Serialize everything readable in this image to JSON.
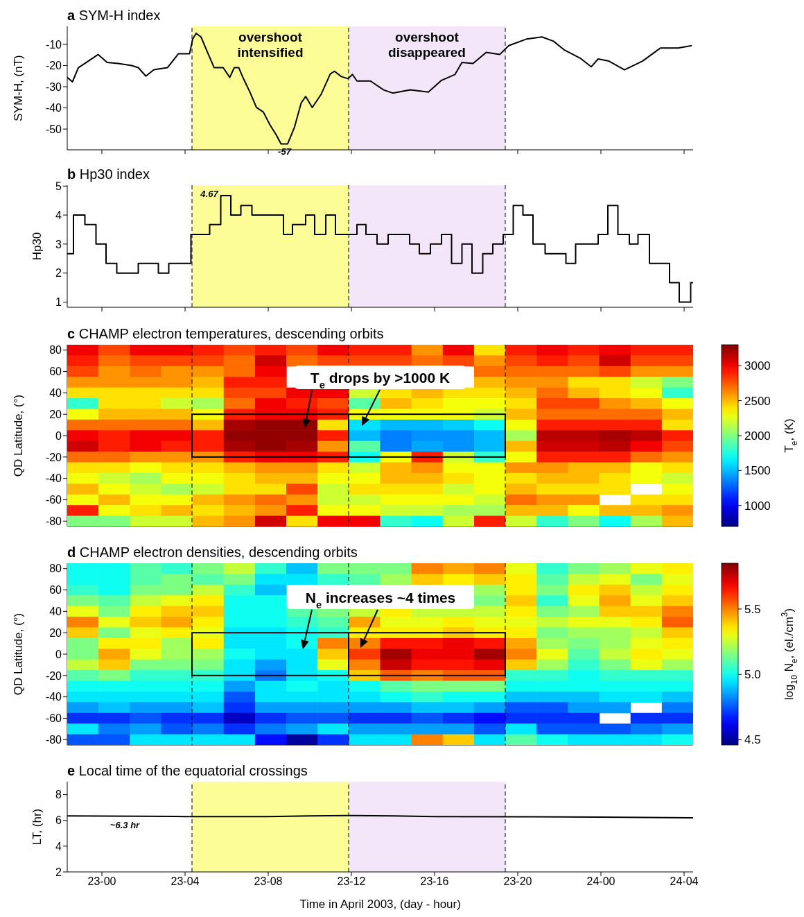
{
  "chart_data": [
    {
      "type": "line",
      "title": "a SYM-H index",
      "ylabel": "SYM-H, (nT)",
      "x": [
        "2003-04-22T22:20",
        "2003-04-22T22:35",
        "2003-04-22T22:52",
        "2003-04-22T23:11",
        "2003-04-22T23:49",
        "2003-04-23T00:15",
        "2003-04-23T00:47",
        "2003-04-23T01:26",
        "2003-04-23T01:45",
        "2003-04-23T02:07",
        "2003-04-23T02:30",
        "2003-04-23T03:09",
        "2003-04-23T03:41",
        "2003-04-23T04:13",
        "2003-04-23T04:22",
        "2003-04-23T04:32",
        "2003-04-23T04:46",
        "2003-04-23T05:05",
        "2003-04-23T05:24",
        "2003-04-23T05:50",
        "2003-04-23T06:09",
        "2003-04-23T06:22",
        "2003-04-23T06:35",
        "2003-04-23T06:48",
        "2003-04-23T07:07",
        "2003-04-23T07:26",
        "2003-04-23T07:46",
        "2003-04-23T08:05",
        "2003-04-23T08:24",
        "2003-04-23T08:37",
        "2003-04-23T08:56",
        "2003-04-23T09:16",
        "2003-04-23T09:35",
        "2003-04-23T09:48",
        "2003-04-23T10:07",
        "2003-04-23T10:33",
        "2003-04-23T10:59",
        "2003-04-23T11:11",
        "2003-04-23T11:31",
        "2003-04-23T11:50",
        "2003-04-23T12:03",
        "2003-04-23T12:16",
        "2003-04-23T12:55",
        "2003-04-23T13:33",
        "2003-04-23T13:59",
        "2003-04-23T14:50",
        "2003-04-23T15:42",
        "2003-04-23T16:20",
        "2003-04-23T16:59",
        "2003-04-23T17:19",
        "2003-04-23T17:51",
        "2003-04-23T18:29",
        "2003-04-23T19:08",
        "2003-04-23T19:34",
        "2003-04-23T20:25",
        "2003-04-23T21:10",
        "2003-04-23T21:43",
        "2003-04-23T22:15",
        "2003-04-23T23:00",
        "2003-04-23T23:32",
        "2003-04-23T23:52",
        "2003-04-24T00:23",
        "2003-04-24T01:08",
        "2003-04-24T02:00",
        "2003-04-24T02:52",
        "2003-04-24T03:43",
        "2003-04-24T04:22"
      ],
      "series": [
        {
          "color": "#000000",
          "values": [
            -25.6,
            -27.7,
            -21,
            -19,
            -14.8,
            -18.5,
            -19,
            -20,
            -21,
            -25,
            -22,
            -21,
            -14.4,
            -14.4,
            -7.5,
            -4.8,
            -6.5,
            -13.8,
            -21,
            -21,
            -25.6,
            -21,
            -21,
            -26,
            -32.5,
            -39.8,
            -42,
            -48,
            -53,
            -57,
            -57,
            -49,
            -37.7,
            -34.6,
            -39.8,
            -33.5,
            -24,
            -22.7,
            -25.2,
            -26.2,
            -24.2,
            -27.3,
            -27.3,
            -31.5,
            -33,
            -31.5,
            -32.5,
            -27,
            -24.2,
            -18.5,
            -19,
            -13.8,
            -14.8,
            -10.6,
            -7.5,
            -6.5,
            -8.5,
            -12.7,
            -16.5,
            -20.6,
            -16.9,
            -17.9,
            -22,
            -17.9,
            -11.7,
            -11.7,
            -10.6
          ]
        }
      ],
      "xlim": [
        "2003-04-22T22:20",
        "2003-04-24T04:26"
      ],
      "xticks": [
        {
          "value": "2003-04-23T00:00",
          "label": null
        },
        {
          "value": "2003-04-23T04:00",
          "label": null
        },
        {
          "value": "2003-04-23T08:00",
          "label": null
        },
        {
          "value": "2003-04-23T12:00",
          "label": null
        },
        {
          "value": "2003-04-23T16:00",
          "label": null
        },
        {
          "value": "2003-04-23T20:00",
          "label": null
        },
        {
          "value": "2003-04-24T00:00",
          "label": null
        },
        {
          "value": "2003-04-24T04:00",
          "label": null
        }
      ],
      "ylim": [
        -59.8,
        -1.5
      ],
      "yticks": [
        -50,
        -40,
        -30,
        -20,
        -10
      ],
      "tick_labels": "y",
      "line_style": "solid",
      "bands": [
        {
          "axis": "x",
          "from": "2003-04-23T04:20",
          "to": "2003-04-23T11:52",
          "label": "overshoot intensified",
          "color": "#fdfd98"
        },
        {
          "axis": "x",
          "from": "2003-04-23T11:52",
          "to": "2003-04-23T19:24",
          "label": "overshoot disappeared",
          "color": "#f4e6f9"
        }
      ],
      "ref_lines": [
        {
          "axis": "x",
          "value": "2003-04-23T04:20",
          "line_style": "dashed"
        },
        {
          "axis": "x",
          "value": "2003-04-23T11:52",
          "line_style": "dashed"
        },
        {
          "axis": "x",
          "value": "2003-04-23T19:24",
          "line_style": "dashed"
        }
      ],
      "annotations": [
        {
          "text": "-57",
          "x": "2003-04-23T08:47",
          "y": -57
        }
      ]
    },
    {
      "type": "step",
      "title": "b Hp30 index",
      "ylabel": "Hp30",
      "x": [
        "2003-04-22T22:20",
        "2003-04-22T22:38",
        "2003-04-22T23:11",
        "2003-04-22T23:43",
        "2003-04-23T00:12",
        "2003-04-23T00:43",
        "2003-04-23T01:45",
        "2003-04-23T02:43",
        "2003-04-23T03:13",
        "2003-04-23T04:17",
        "2003-04-23T05:11",
        "2003-04-23T05:43",
        "2003-04-23T06:12",
        "2003-04-23T06:41",
        "2003-04-23T07:13",
        "2003-04-23T08:44",
        "2003-04-23T09:10",
        "2003-04-23T09:48",
        "2003-04-23T10:14",
        "2003-04-23T10:46",
        "2003-04-23T11:14",
        "2003-04-23T12:16",
        "2003-04-23T12:42",
        "2003-04-23T13:14",
        "2003-04-23T13:46",
        "2003-04-23T14:48",
        "2003-04-23T15:16",
        "2003-04-23T15:48",
        "2003-04-23T16:20",
        "2003-04-23T16:49",
        "2003-04-23T17:19",
        "2003-04-23T17:48",
        "2003-04-23T18:19",
        "2003-04-23T18:48",
        "2003-04-23T19:18",
        "2003-04-23T19:47",
        "2003-04-23T20:15",
        "2003-04-23T20:44",
        "2003-04-23T21:19",
        "2003-04-23T22:19",
        "2003-04-23T22:47",
        "2003-04-23T23:52",
        "2003-04-24T00:20",
        "2003-04-24T00:49",
        "2003-04-24T01:22",
        "2003-04-24T01:47",
        "2003-04-24T02:20",
        "2003-04-24T03:18",
        "2003-04-24T03:46",
        "2003-04-24T04:19",
        "2003-04-24T04:26"
      ],
      "series": [
        {
          "color": "#000000",
          "values": [
            2.67,
            4,
            3.67,
            3,
            2.33,
            2,
            2.33,
            2,
            2.33,
            3.33,
            3.67,
            4.67,
            4,
            4.33,
            4,
            3.33,
            3.67,
            4,
            3.33,
            4,
            3.33,
            3.67,
            3.33,
            3,
            3.33,
            3,
            2.67,
            3,
            3.33,
            2.33,
            3,
            2,
            2.67,
            3,
            3.33,
            4.33,
            4,
            3,
            2.67,
            2.33,
            3,
            3.33,
            4.33,
            3.33,
            3,
            3.33,
            2.33,
            1.67,
            1,
            1.67,
            1.67
          ]
        }
      ],
      "xlim": [
        "2003-04-22T22:20",
        "2003-04-24T04:26"
      ],
      "xticks": [
        {
          "value": "2003-04-23T00:00",
          "label": null
        },
        {
          "value": "2003-04-23T04:00",
          "label": null
        },
        {
          "value": "2003-04-23T08:00",
          "label": null
        },
        {
          "value": "2003-04-23T12:00",
          "label": null
        },
        {
          "value": "2003-04-23T16:00",
          "label": null
        },
        {
          "value": "2003-04-23T20:00",
          "label": null
        },
        {
          "value": "2003-04-24T00:00",
          "label": null
        },
        {
          "value": "2003-04-24T04:00",
          "label": null
        }
      ],
      "ylim": [
        0.82,
        5.03
      ],
      "yticks": [
        1,
        2,
        3,
        4,
        5
      ],
      "tick_labels": "y",
      "line_style": "solid",
      "bands": [
        {
          "axis": "x",
          "from": "2003-04-23T04:20",
          "to": "2003-04-23T11:52",
          "color": "#fdfd98"
        },
        {
          "axis": "x",
          "from": "2003-04-23T11:52",
          "to": "2003-04-23T19:24",
          "color": "#f4e6f9"
        }
      ],
      "ref_lines": [
        {
          "axis": "x",
          "value": "2003-04-23T04:20",
          "line_style": "dashed"
        },
        {
          "axis": "x",
          "value": "2003-04-23T11:52",
          "line_style": "dashed"
        },
        {
          "axis": "x",
          "value": "2003-04-23T19:24",
          "line_style": "dashed"
        }
      ],
      "annotations": [
        {
          "text": "4.67",
          "x": "2003-04-23T05:58",
          "y": 4.67
        }
      ]
    },
    {
      "type": "heatmap",
      "title": "c CHAMP electron temperatures, descending orbits",
      "ylabel": "QD Latitude, (°)",
      "clabel": "T$_{e}$, (K)",
      "categories": [
        null,
        null,
        null,
        null,
        null,
        null,
        null,
        null,
        null,
        null,
        null,
        null,
        null,
        null,
        null,
        null,
        null,
        null,
        null,
        null
      ],
      "y_categories": [
        "80",
        null,
        "60",
        null,
        "40",
        null,
        "20",
        null,
        "0",
        null,
        "-20",
        null,
        "-40",
        null,
        "-60",
        null,
        "-80"
      ],
      "cells": [
        [
          3000,
          2800,
          3000,
          3000,
          2900,
          2800,
          2900,
          2800,
          3000,
          2900,
          2900,
          2600,
          3000,
          2400,
          2900,
          3000,
          2900,
          3000,
          2900,
          2900
        ],
        [
          2900,
          2700,
          2800,
          2800,
          2800,
          2700,
          3100,
          2700,
          2800,
          2800,
          2800,
          2700,
          2800,
          2600,
          2800,
          2900,
          2800,
          3100,
          2800,
          2800
        ],
        [
          2800,
          2600,
          2700,
          2600,
          2600,
          2700,
          3000,
          null,
          null,
          null,
          null,
          null,
          null,
          2700,
          2700,
          2700,
          2700,
          2800,
          2600,
          2600
        ],
        [
          2600,
          2600,
          2600,
          2600,
          2500,
          2900,
          2900,
          null,
          null,
          null,
          null,
          null,
          null,
          2500,
          2600,
          2600,
          2400,
          2400,
          2200,
          2000
        ],
        [
          2400,
          2400,
          2400,
          2400,
          2400,
          2800,
          2800,
          3000,
          3000,
          2200,
          2400,
          2500,
          2400,
          2400,
          2500,
          2700,
          2500,
          2400,
          2300,
          1800
        ],
        [
          1800,
          2400,
          2400,
          2200,
          2100,
          2700,
          3000,
          2900,
          2800,
          1900,
          2500,
          2400,
          2300,
          2300,
          2400,
          2800,
          2800,
          2600,
          2500,
          2300
        ],
        [
          2300,
          2500,
          2500,
          2500,
          2300,
          2900,
          3000,
          3000,
          2900,
          2300,
          2300,
          2300,
          2300,
          2200,
          2500,
          2700,
          2700,
          2700,
          2700,
          2500
        ],
        [
          2700,
          2700,
          2700,
          2700,
          2500,
          3200,
          3250,
          3250,
          2400,
          1600,
          1500,
          1500,
          1550,
          1700,
          2300,
          2900,
          2900,
          2900,
          2900,
          2400
        ],
        [
          3000,
          2900,
          3000,
          3000,
          2900,
          3250,
          3250,
          3250,
          2900,
          1500,
          1350,
          1400,
          1400,
          1500,
          2100,
          3150,
          3150,
          3200,
          3150,
          2900
        ],
        [
          3100,
          2900,
          3000,
          2900,
          2900,
          3200,
          3250,
          3200,
          2600,
          1900,
          1350,
          1450,
          1400,
          1500,
          2500,
          3100,
          3100,
          3150,
          3000,
          2800
        ],
        [
          2700,
          2700,
          2600,
          2600,
          2600,
          2900,
          3000,
          3000,
          2900,
          1700,
          2300,
          2900,
          2200,
          1800,
          2300,
          2900,
          2900,
          2900,
          2700,
          2600
        ],
        [
          2400,
          2400,
          2300,
          2400,
          2400,
          2500,
          2600,
          2600,
          2400,
          2200,
          2500,
          2600,
          2300,
          2300,
          2600,
          2600,
          2500,
          2500,
          2300,
          2400
        ],
        [
          2300,
          2200,
          2100,
          2300,
          2300,
          2400,
          2500,
          2500,
          2300,
          2300,
          2500,
          2500,
          2400,
          2300,
          2400,
          2500,
          2500,
          2400,
          2300,
          2200
        ],
        [
          2500,
          2300,
          2200,
          2100,
          2200,
          2400,
          2400,
          2800,
          2200,
          2400,
          2400,
          2400,
          2200,
          2300,
          2500,
          2400,
          2400,
          2400,
          null,
          2300
        ],
        [
          2300,
          2500,
          2300,
          2300,
          2500,
          2600,
          2700,
          2600,
          2200,
          2200,
          2300,
          2300,
          2300,
          2200,
          2700,
          2600,
          2600,
          null,
          2400,
          2400
        ],
        [
          2900,
          2300,
          2400,
          2500,
          2400,
          2500,
          2600,
          2900,
          2300,
          2300,
          2200,
          2200,
          2100,
          2100,
          2500,
          2500,
          2300,
          2500,
          2500,
          2600
        ],
        [
          2000,
          2000,
          2200,
          2200,
          2500,
          2600,
          3100,
          2400,
          3000,
          3000,
          1800,
          1700,
          2200,
          2900,
          2200,
          1800,
          2000,
          1700,
          2100,
          2500
        ]
      ],
      "clim": [
        700,
        3300
      ],
      "cticks": [
        1000,
        1500,
        2000,
        2500,
        3000
      ],
      "ref_lines": [
        {
          "axis": "y",
          "value": "20",
          "line_style": "dashed"
        },
        {
          "axis": "y",
          "value": "-20",
          "line_style": "dashed"
        }
      ],
      "annotations": [
        "T$_{e}$ drops by >1000 K"
      ]
    },
    {
      "type": "heatmap",
      "title": "d CHAMP electron densities, descending orbits",
      "ylabel": "QD Latitude, (°)",
      "clabel": "log$_{10}$ N$_{e}$, (el./cm$^{3}$)",
      "categories": [
        null,
        null,
        null,
        null,
        null,
        null,
        null,
        null,
        null,
        null,
        null,
        null,
        null,
        null,
        null,
        null,
        null,
        null,
        null,
        null
      ],
      "y_categories": [
        "80",
        null,
        "60",
        null,
        "40",
        null,
        "20",
        null,
        "0",
        null,
        "-20",
        null,
        "-40",
        null,
        "-60",
        null,
        "-80"
      ],
      "cells": [
        [
          5.0,
          5.0,
          5.1,
          5.05,
          5.15,
          5.25,
          5.05,
          4.9,
          5.15,
          5.15,
          5.15,
          5.5,
          5.45,
          5.5,
          5.3,
          5.05,
          5.15,
          5.2,
          5.3,
          5.35
        ],
        [
          5.0,
          5.0,
          5.1,
          5.15,
          5.1,
          5.15,
          4.95,
          4.95,
          5.05,
          5.1,
          5.2,
          5.4,
          5.35,
          5.4,
          5.35,
          5.1,
          5.25,
          5.3,
          5.15,
          5.3
        ],
        [
          5.05,
          5.0,
          5.15,
          5.15,
          5.25,
          5.05,
          4.9,
          null,
          null,
          null,
          null,
          null,
          null,
          5.2,
          5.35,
          5.15,
          5.35,
          5.4,
          5.25,
          5.35
        ],
        [
          5.15,
          5.1,
          5.25,
          5.3,
          5.35,
          5.0,
          5.0,
          null,
          null,
          null,
          null,
          null,
          null,
          5.15,
          5.4,
          5.05,
          5.3,
          5.45,
          5.3,
          5.4
        ],
        [
          5.3,
          5.15,
          5.35,
          5.4,
          5.4,
          5.0,
          5.0,
          5.1,
          5.15,
          5.25,
          5.35,
          5.25,
          5.25,
          5.25,
          5.35,
          5.15,
          5.2,
          5.4,
          5.4,
          5.5
        ],
        [
          5.5,
          5.3,
          5.4,
          5.45,
          5.35,
          5.0,
          5.0,
          5.05,
          5.1,
          5.45,
          5.3,
          5.3,
          5.35,
          5.3,
          5.3,
          5.25,
          5.3,
          5.3,
          5.35,
          5.55
        ],
        [
          5.4,
          5.15,
          5.3,
          5.35,
          5.3,
          4.95,
          4.95,
          5.0,
          5.05,
          5.35,
          5.35,
          5.35,
          5.4,
          5.35,
          5.35,
          5.15,
          5.2,
          5.2,
          5.25,
          5.4
        ],
        [
          5.15,
          5.35,
          5.35,
          5.2,
          5.35,
          4.95,
          4.95,
          5.0,
          5.5,
          5.5,
          5.65,
          5.65,
          5.7,
          5.65,
          5.45,
          5.2,
          5.15,
          5.2,
          5.3,
          5.35
        ],
        [
          5.15,
          5.45,
          5.3,
          5.2,
          5.2,
          5.0,
          4.95,
          4.95,
          5.4,
          5.6,
          5.8,
          5.7,
          5.7,
          5.8,
          5.5,
          5.3,
          5.1,
          5.25,
          5.35,
          5.3
        ],
        [
          5.25,
          5.4,
          5.15,
          5.15,
          5.15,
          4.95,
          4.85,
          4.95,
          5.3,
          5.5,
          5.75,
          5.65,
          5.65,
          5.7,
          5.4,
          5.2,
          5.05,
          5.15,
          5.3,
          5.2
        ],
        [
          5.1,
          5.15,
          5.05,
          5.05,
          5.05,
          4.95,
          4.8,
          4.95,
          5.0,
          5.4,
          5.55,
          5.5,
          5.55,
          5.55,
          5.05,
          5.05,
          5.0,
          5.05,
          5.05,
          5.05
        ],
        [
          5.0,
          5.0,
          5.0,
          5.0,
          5.0,
          4.85,
          4.95,
          5.0,
          4.95,
          5.0,
          5.1,
          5.15,
          5.15,
          5.15,
          5.0,
          5.0,
          5.0,
          5.0,
          5.0,
          5.0
        ],
        [
          4.95,
          4.95,
          4.95,
          4.95,
          4.95,
          4.75,
          4.95,
          4.95,
          4.95,
          4.95,
          5.0,
          5.05,
          5.0,
          5.0,
          4.9,
          4.9,
          4.9,
          4.95,
          4.95,
          4.9
        ],
        [
          4.85,
          4.9,
          4.85,
          4.85,
          4.9,
          4.7,
          4.85,
          4.85,
          4.85,
          4.85,
          4.85,
          4.9,
          4.9,
          4.85,
          4.75,
          4.75,
          4.85,
          4.85,
          null,
          4.8
        ],
        [
          4.7,
          4.7,
          4.75,
          4.7,
          4.7,
          4.55,
          4.7,
          4.75,
          4.75,
          4.7,
          4.7,
          4.75,
          4.7,
          4.65,
          4.7,
          4.7,
          4.7,
          null,
          4.7,
          4.7
        ],
        [
          4.95,
          4.8,
          4.85,
          4.75,
          4.8,
          4.7,
          4.8,
          4.85,
          4.95,
          4.85,
          4.85,
          4.85,
          4.85,
          4.75,
          4.95,
          4.75,
          4.75,
          4.75,
          4.8,
          4.85
        ],
        [
          4.75,
          4.75,
          4.95,
          4.95,
          4.95,
          4.95,
          4.65,
          4.5,
          4.7,
          4.95,
          4.95,
          5.5,
          5.4,
          4.95,
          5.1,
          5.0,
          4.95,
          4.95,
          4.95,
          5.0
        ]
      ],
      "clim": [
        4.46,
        5.85
      ],
      "cticks": [
        4.5,
        {
          "value": 5,
          "label": "5.0"
        },
        5.5
      ],
      "ref_lines": [
        {
          "axis": "y",
          "value": "20",
          "line_style": "dashed"
        },
        {
          "axis": "y",
          "value": "-20",
          "line_style": "dashed"
        }
      ],
      "annotations": [
        "N$_{e}$ increases ~4 times"
      ]
    },
    {
      "type": "line",
      "title": "e Local time of the equatorial crossings",
      "ylabel": "LT, (hr)",
      "xlabel": "Time in April 2003, (day - hour)",
      "x": [
        "2003-04-22T22:20",
        "2003-04-23T04:00",
        "2003-04-23T08:00",
        "2003-04-23T10:00",
        "2003-04-23T11:48",
        "2003-04-23T14:00",
        "2003-04-23T16:00",
        "2003-04-23T20:00",
        "2003-04-24T00:00",
        "2003-04-24T04:26"
      ],
      "series": [
        {
          "color": "#000000",
          "values": [
            6.35,
            6.3,
            6.3,
            6.35,
            6.38,
            6.35,
            6.3,
            6.28,
            6.25,
            6.2
          ]
        }
      ],
      "xlim": [
        "2003-04-22T22:20",
        "2003-04-24T04:26"
      ],
      "xticks": [
        {
          "value": "2003-04-23T00:00",
          "label": "23-00"
        },
        {
          "value": "2003-04-23T04:00",
          "label": "23-04"
        },
        {
          "value": "2003-04-23T08:00",
          "label": "23-08"
        },
        {
          "value": "2003-04-23T12:00",
          "label": "23-12"
        },
        {
          "value": "2003-04-23T16:00",
          "label": "23-16"
        },
        {
          "value": "2003-04-23T20:00",
          "label": "23-20"
        },
        {
          "value": "2003-04-24T00:00",
          "label": "24-00"
        },
        {
          "value": "2003-04-24T04:00",
          "label": "24-04"
        }
      ],
      "ylim": [
        2,
        9
      ],
      "yticks": [
        2,
        4,
        6,
        8
      ],
      "line_style": "solid",
      "bands": [
        {
          "axis": "x",
          "from": "2003-04-23T04:20",
          "to": "2003-04-23T11:52",
          "color": "#fdfd98"
        },
        {
          "axis": "x",
          "from": "2003-04-23T11:52",
          "to": "2003-04-23T19:24",
          "color": "#f4e6f9"
        }
      ],
      "ref_lines": [
        {
          "axis": "x",
          "value": "2003-04-23T04:20",
          "line_style": "dashed"
        },
        {
          "axis": "x",
          "value": "2003-04-23T11:52",
          "line_style": "dashed"
        },
        {
          "axis": "x",
          "value": "2003-04-23T19:24",
          "line_style": "dashed"
        }
      ],
      "annotations": [
        "~6.3 hr"
      ]
    }
  ]
}
